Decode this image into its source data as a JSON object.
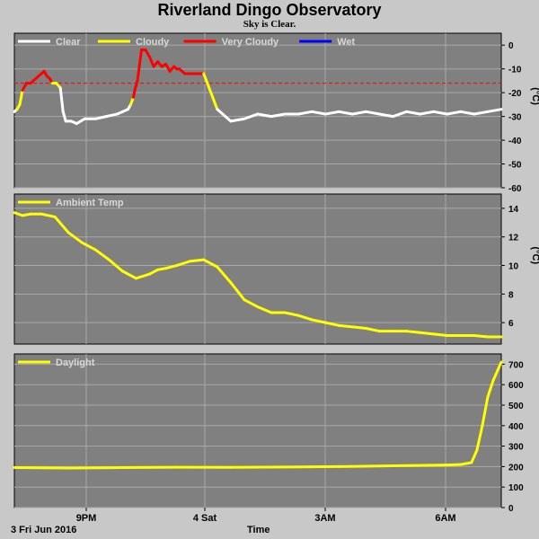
{
  "header": {
    "title": "Riverland Dingo Observatory",
    "subtitle": "Sky is Clear."
  },
  "footer": {
    "date_label": "3 Fri Jun 2016",
    "axis_label": "Time"
  },
  "x_ticks": [
    "9PM",
    "4 Sat",
    "3AM",
    "6AM"
  ],
  "colors": {
    "background": "#c8c8c8",
    "plot_bg": "#808080",
    "grid": "#a8a8a8",
    "clear": "#ffffff",
    "cloudy": "#ffff00",
    "very_cloudy": "#ff0000",
    "wet": "#0000ff"
  },
  "chart_data": [
    {
      "type": "line",
      "name": "sky",
      "legend": [
        {
          "label": "Clear",
          "color": "#ffffff"
        },
        {
          "label": "Cloudy",
          "color": "#ffff00"
        },
        {
          "label": "Very Cloudy",
          "color": "#ff0000"
        },
        {
          "label": "Wet",
          "color": "#0000ff"
        }
      ],
      "ylabel": "(°C)",
      "ylim": [
        -60,
        5
      ],
      "yticks": [
        0,
        -10,
        -20,
        -30,
        -40,
        -50,
        -60
      ],
      "threshold": -16,
      "x": [
        0,
        0.1,
        0.2,
        0.3,
        0.45,
        0.6,
        0.8,
        1.1,
        1.2,
        1.3,
        1.4,
        1.55,
        1.7,
        1.8,
        1.9,
        2.1,
        2.3,
        2.6,
        3.0,
        3.4,
        3.8,
        4.0,
        4.2,
        4.3,
        4.4,
        4.45,
        4.55,
        4.7,
        4.85,
        5.0,
        5.15,
        5.3,
        5.45,
        5.6,
        5.75,
        5.9,
        6.0,
        6.1,
        6.2,
        6.3,
        6.6,
        7.0,
        7.5,
        8.0,
        8.5,
        9.0,
        9.5,
        10.0,
        10.5,
        11.0,
        11.5,
        12.0,
        12.5,
        13.0,
        13.5,
        14.0,
        14.5,
        15.0,
        15.5,
        16.0,
        16.5,
        17.0,
        17.5,
        18.0
      ],
      "values": [
        -28,
        -27,
        -25,
        -19,
        -16,
        -16,
        -14,
        -11,
        -13,
        -14,
        -16,
        -16,
        -18,
        -28,
        -32,
        -32,
        -33,
        -31,
        -31,
        -30,
        -29,
        -28,
        -27,
        -25,
        -22,
        -19,
        -15,
        -2,
        -2,
        -5,
        -9,
        -7,
        -9,
        -8,
        -11,
        -9,
        -10,
        -10,
        -11,
        -12,
        -12,
        -12,
        -27,
        -32,
        -31,
        -29,
        -30,
        -29,
        -29,
        -28,
        -29,
        -28,
        -29,
        -28,
        -29,
        -30,
        -28,
        -29,
        -28,
        -29,
        -28,
        -29,
        -28,
        -27
      ],
      "status": [
        "clear",
        "clear",
        "cloudy",
        "cloudy",
        "very_cloudy",
        "very_cloudy",
        "very_cloudy",
        "very_cloudy",
        "very_cloudy",
        "very_cloudy",
        "very_cloudy",
        "cloudy",
        "cloudy",
        "clear",
        "clear",
        "clear",
        "clear",
        "clear",
        "clear",
        "clear",
        "clear",
        "clear",
        "clear",
        "clear",
        "cloudy",
        "very_cloudy",
        "very_cloudy",
        "very_cloudy",
        "very_cloudy",
        "very_cloudy",
        "very_cloudy",
        "very_cloudy",
        "very_cloudy",
        "very_cloudy",
        "very_cloudy",
        "very_cloudy",
        "very_cloudy",
        "very_cloudy",
        "very_cloudy",
        "very_cloudy",
        "very_cloudy",
        "very_cloudy",
        "cloudy",
        "clear",
        "clear",
        "clear",
        "clear",
        "clear",
        "clear",
        "clear",
        "clear",
        "clear",
        "clear",
        "clear",
        "clear",
        "clear",
        "clear",
        "clear",
        "clear",
        "clear",
        "clear",
        "clear",
        "clear",
        "clear"
      ]
    },
    {
      "type": "line",
      "name": "ambient",
      "legend": [
        {
          "label": "Ambient Temp",
          "color": "#ffff00"
        }
      ],
      "ylabel": "(°C)",
      "ylim": [
        4.5,
        15
      ],
      "yticks": [
        14,
        12,
        10,
        8,
        6
      ],
      "x": [
        0,
        0.3,
        0.6,
        1.0,
        1.5,
        2.0,
        2.5,
        3.0,
        3.5,
        4.0,
        4.5,
        5.0,
        5.3,
        5.6,
        6.0,
        6.5,
        7.0,
        7.5,
        8.0,
        8.5,
        9.0,
        9.5,
        10.0,
        10.5,
        11.0,
        11.5,
        12.0,
        12.5,
        13.0,
        13.5,
        14.0,
        14.5,
        15.0,
        15.5,
        16.0,
        16.5,
        17.0,
        17.5,
        18.0
      ],
      "values": [
        13.7,
        13.5,
        13.6,
        13.6,
        13.4,
        12.3,
        11.6,
        11.1,
        10.4,
        9.6,
        9.1,
        9.4,
        9.7,
        9.8,
        10.0,
        10.3,
        10.4,
        9.9,
        8.8,
        7.6,
        7.1,
        6.7,
        6.7,
        6.5,
        6.2,
        6.0,
        5.8,
        5.7,
        5.6,
        5.4,
        5.4,
        5.4,
        5.3,
        5.2,
        5.1,
        5.1,
        5.1,
        5.0,
        5.0
      ]
    },
    {
      "type": "line",
      "name": "daylight",
      "legend": [
        {
          "label": "Daylight",
          "color": "#ffff00"
        }
      ],
      "ylim": [
        0,
        750
      ],
      "yticks": [
        700,
        600,
        500,
        400,
        300,
        200,
        100,
        0
      ],
      "x": [
        0,
        2.0,
        4.0,
        6.0,
        8.0,
        10.0,
        12.0,
        14.0,
        16.0,
        16.5,
        16.9,
        17.1,
        17.3,
        17.5,
        17.7,
        17.9,
        18.0
      ],
      "values": [
        195,
        193,
        195,
        197,
        196,
        198,
        200,
        204,
        208,
        210,
        220,
        280,
        400,
        540,
        620,
        680,
        710
      ]
    }
  ]
}
